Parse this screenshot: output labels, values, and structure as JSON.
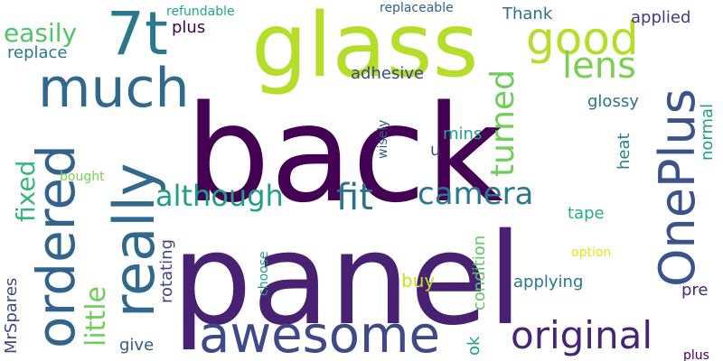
{
  "word_cloud": {
    "words": [
      {
        "text": "back",
        "color": "#440154"
      },
      {
        "text": "panel",
        "color": "#482173"
      },
      {
        "text": "glass",
        "color": "#b5de2b"
      },
      {
        "text": "much",
        "color": "#31688e"
      },
      {
        "text": "7t",
        "color": "#2a788e"
      },
      {
        "text": "really",
        "color": "#31688e"
      },
      {
        "text": "ordered",
        "color": "#33638d"
      },
      {
        "text": "awesome",
        "color": "#3e4989"
      },
      {
        "text": "OnePlus",
        "color": "#3b528b"
      },
      {
        "text": "good",
        "color": "#b5de2b"
      },
      {
        "text": "lens",
        "color": "#7ad151"
      },
      {
        "text": "although",
        "color": "#1f9e89"
      },
      {
        "text": "fit",
        "color": "#2c728e"
      },
      {
        "text": "camera",
        "color": "#2a788e"
      },
      {
        "text": "original",
        "color": "#482475"
      },
      {
        "text": "turned",
        "color": "#6ece58"
      },
      {
        "text": "little",
        "color": "#6ece58"
      },
      {
        "text": "fixed",
        "color": "#35b779"
      },
      {
        "text": "easily",
        "color": "#52c569"
      },
      {
        "text": "replace",
        "color": "#2a788e"
      },
      {
        "text": "plus",
        "color": "#440154"
      },
      {
        "text": "adhesive",
        "color": "#3e4989"
      },
      {
        "text": "applied",
        "color": "#443983"
      },
      {
        "text": "Thank",
        "color": "#2c728e"
      },
      {
        "text": "refundable",
        "color": "#22a884"
      },
      {
        "text": "replaceable",
        "color": "#33638d"
      },
      {
        "text": "glossy",
        "color": "#2c728e"
      },
      {
        "text": "mins",
        "color": "#20a486"
      },
      {
        "text": "u",
        "color": "#3e4989"
      },
      {
        "text": "heat",
        "color": "#25848e"
      },
      {
        "text": "normal",
        "color": "#1fa088"
      },
      {
        "text": "wisely",
        "color": "#38588c"
      },
      {
        "text": "bought",
        "color": "#7ad151"
      },
      {
        "text": "tape",
        "color": "#27ad81"
      },
      {
        "text": "condition",
        "color": "#5ec962"
      },
      {
        "text": "option",
        "color": "#e5e419"
      },
      {
        "text": "choose",
        "color": "#1f9e89"
      },
      {
        "text": "rotating",
        "color": "#414487"
      },
      {
        "text": "buy",
        "color": "#c8e020"
      },
      {
        "text": "applying",
        "color": "#2a788e"
      },
      {
        "text": "pre",
        "color": "#482878"
      },
      {
        "text": "MrSpares",
        "color": "#3e4989"
      },
      {
        "text": "give",
        "color": "#38588c"
      },
      {
        "text": "ok",
        "color": "#20a486"
      },
      {
        "text": "plus",
        "color": "#440154"
      }
    ]
  }
}
